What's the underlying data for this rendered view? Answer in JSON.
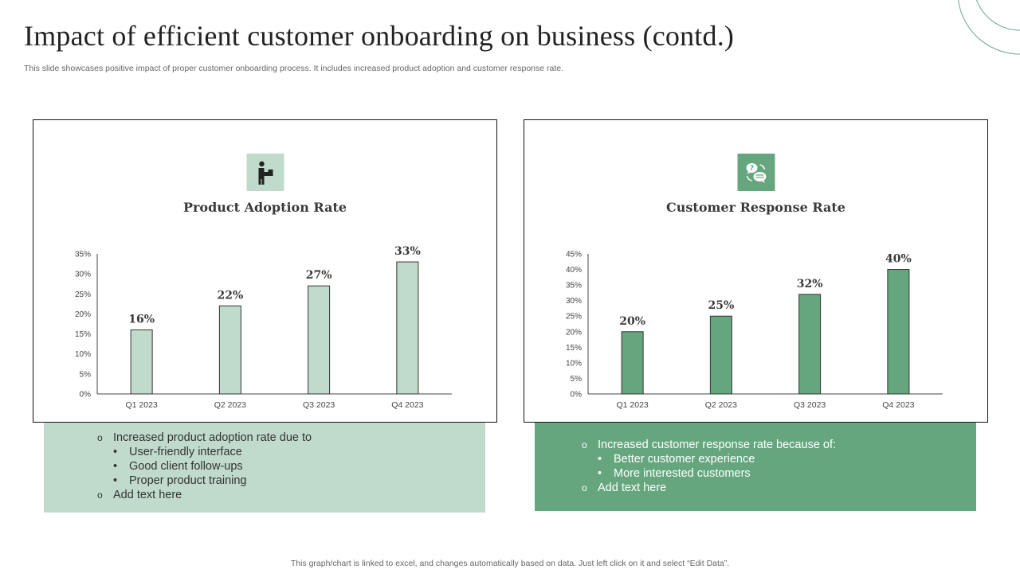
{
  "header": {
    "title": "Impact of efficient customer onboarding on business (contd.)",
    "subtitle": "This slide showcases positive impact of proper customer onboarding process. It includes increased product adoption and customer response rate."
  },
  "colors": {
    "light_green": "#c0dbcb",
    "dark_green": "#65a67e",
    "deco_circle": "#6aa88a"
  },
  "panels": [
    {
      "title": "Product Adoption Rate",
      "icon": "person-with-box-icon",
      "notes": {
        "items": [
          {
            "text": "Increased product adoption rate due to",
            "sub": [
              "User-friendly interface",
              "Good client follow-ups",
              "Proper product training"
            ]
          },
          {
            "text": "Add text here",
            "sub": []
          }
        ]
      }
    },
    {
      "title": "Customer Response Rate",
      "icon": "chat-bubbles-exchange-icon",
      "notes": {
        "items": [
          {
            "text": "Increased customer response rate because of:",
            "sub": [
              "Better customer experience",
              "More interested customers"
            ]
          },
          {
            "text": "Add text here",
            "sub": []
          }
        ]
      }
    }
  ],
  "footer": {
    "text": "This graph/chart is linked to excel,  and changes automatically based on data. Just left click on it and select “Edit Data”."
  },
  "chart_data": [
    {
      "type": "bar",
      "title": "Product Adoption Rate",
      "categories": [
        "Q1 2023",
        "Q2 2023",
        "Q3 2023",
        "Q4 2023"
      ],
      "values": [
        16,
        22,
        27,
        33
      ],
      "data_labels": [
        "16%",
        "22%",
        "27%",
        "33%"
      ],
      "yticks": [
        "0%",
        "5%",
        "10%",
        "15%",
        "20%",
        "25%",
        "30%",
        "35%"
      ],
      "ylim": [
        0,
        35
      ],
      "xlabel": "",
      "ylabel": "",
      "grid": false,
      "legend": "none",
      "bar_color": "#c0dbcb"
    },
    {
      "type": "bar",
      "title": "Customer Response Rate",
      "categories": [
        "Q1 2023",
        "Q2 2023",
        "Q3 2023",
        "Q4 2023"
      ],
      "values": [
        20,
        25,
        32,
        40
      ],
      "data_labels": [
        "20%",
        "25%",
        "32%",
        "40%"
      ],
      "yticks": [
        "0%",
        "5%",
        "10%",
        "15%",
        "20%",
        "25%",
        "30%",
        "35%",
        "40%",
        "45%"
      ],
      "ylim": [
        0,
        45
      ],
      "xlabel": "",
      "ylabel": "",
      "grid": false,
      "legend": "none",
      "bar_color": "#65a67e"
    }
  ]
}
